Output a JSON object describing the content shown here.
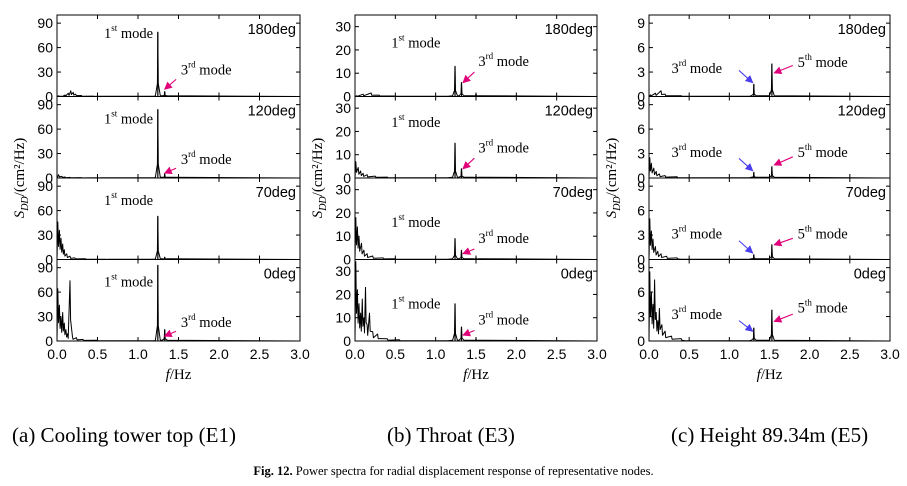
{
  "chart_data": [
    {
      "type": "line",
      "panel": "a",
      "subtitle": "(a) Cooling tower top (E1)",
      "xlabel_italic": "f",
      "xlabel_unit": "/Hz",
      "ylabel_italic": "S",
      "ylabel_sub": "DD",
      "ylabel_unit": "/(cm²/Hz)",
      "xlim": [
        0,
        3.0
      ],
      "xticks": [
        0,
        0.5,
        1.0,
        1.5,
        2.0,
        2.5,
        3.0
      ],
      "xtick_labels": [
        "0.0",
        "0.5",
        "1.0",
        "1.5",
        "2.0",
        "2.5",
        "3.0"
      ],
      "ylim": [
        0,
        100
      ],
      "yticks": [
        0,
        30,
        60,
        90
      ],
      "ytick_labels": [
        "0",
        "30",
        "60",
        "90"
      ],
      "strips": [
        {
          "angle": "180deg",
          "baseline": [
            [
              0.02,
              0.8
            ],
            [
              0.06,
              0.4
            ],
            [
              0.1,
              1.8
            ],
            [
              0.14,
              4.0
            ],
            [
              0.17,
              7.0
            ],
            [
              0.2,
              5.0
            ],
            [
              0.23,
              3.0
            ],
            [
              0.3,
              1.2
            ],
            [
              0.45,
              0.5
            ]
          ],
          "peaks": [
            [
              1.245,
              79
            ],
            [
              1.33,
              6
            ]
          ],
          "annotations": [
            {
              "text": "1",
              "sup": "st",
              "suffix": " mode",
              "x": 0.58,
              "y": 72
            },
            {
              "text": "3",
              "sup": "rd",
              "suffix": " mode",
              "x": 1.53,
              "y": 27,
              "arrow_from": [
                1.47,
                21
              ],
              "arrow_to": [
                1.33,
                9
              ]
            }
          ]
        },
        {
          "angle": "120deg",
          "baseline": [
            [
              0.02,
              4.0
            ],
            [
              0.06,
              2.0
            ],
            [
              0.1,
              1.2
            ],
            [
              0.16,
              0.7
            ],
            [
              0.3,
              0.5
            ],
            [
              0.5,
              0.3
            ]
          ],
          "peaks": [
            [
              1.245,
              84
            ],
            [
              1.33,
              5
            ]
          ],
          "annotations": [
            {
              "text": "1",
              "sup": "st",
              "suffix": " mode",
              "x": 0.58,
              "y": 67
            },
            {
              "text": "3",
              "sup": "rd",
              "suffix": " mode",
              "x": 1.53,
              "y": 17,
              "arrow_from": [
                1.47,
                12
              ],
              "arrow_to": [
                1.33,
                6
              ]
            }
          ]
        },
        {
          "angle": "70deg",
          "baseline": [
            [
              0.01,
              46
            ],
            [
              0.03,
              36
            ],
            [
              0.05,
              26
            ],
            [
              0.07,
              19
            ],
            [
              0.09,
              12
            ],
            [
              0.12,
              7
            ],
            [
              0.16,
              4
            ],
            [
              0.22,
              2
            ],
            [
              0.35,
              1
            ],
            [
              0.6,
              0.4
            ]
          ],
          "peaks": [
            [
              1.245,
              53
            ],
            [
              1.33,
              3
            ]
          ],
          "annotations": [
            {
              "text": "1",
              "sup": "st",
              "suffix": " mode",
              "x": 0.58,
              "y": 67
            }
          ]
        },
        {
          "angle": "0deg",
          "baseline": [
            [
              0.01,
              64
            ],
            [
              0.03,
              44
            ],
            [
              0.05,
              30
            ],
            [
              0.07,
              35
            ],
            [
              0.09,
              22
            ],
            [
              0.11,
              14
            ],
            [
              0.13,
              9
            ],
            [
              0.16,
              74
            ],
            [
              0.19,
              6
            ],
            [
              0.24,
              4
            ],
            [
              0.32,
              2
            ],
            [
              0.5,
              1
            ]
          ],
          "peaks": [
            [
              1.245,
              93
            ],
            [
              1.33,
              14
            ]
          ],
          "annotations": [
            {
              "text": "1",
              "sup": "st",
              "suffix": " mode",
              "x": 0.58,
              "y": 67
            },
            {
              "text": "3",
              "sup": "rd",
              "suffix": " mode",
              "x": 1.53,
              "y": 17,
              "arrow_from": [
                1.47,
                12
              ],
              "arrow_to": [
                1.33,
                6
              ]
            }
          ]
        }
      ]
    },
    {
      "type": "line",
      "panel": "b",
      "subtitle": "(b) Throat (E3)",
      "xlabel_italic": "f",
      "xlabel_unit": "/Hz",
      "ylabel_italic": "S",
      "ylabel_sub": "DD",
      "ylabel_unit": "/(cm²/Hz)",
      "xlim": [
        0,
        3.0
      ],
      "xticks": [
        0,
        0.5,
        1.0,
        1.5,
        2.0,
        2.5,
        3.0
      ],
      "xtick_labels": [
        "0.0",
        "0.5",
        "1.0",
        "1.5",
        "2.0",
        "2.5",
        "3.0"
      ],
      "ylim": [
        0,
        35
      ],
      "yticks": [
        0,
        10,
        20,
        30
      ],
      "ytick_labels": [
        "0",
        "10",
        "20",
        "30"
      ],
      "strips": [
        {
          "angle": "180deg",
          "baseline": [
            [
              0.02,
              0.3
            ],
            [
              0.1,
              1.0
            ],
            [
              0.2,
              1.5
            ],
            [
              0.3,
              0.6
            ],
            [
              0.5,
              0.2
            ]
          ],
          "peaks": [
            [
              1.24,
              13
            ],
            [
              1.32,
              6
            ],
            [
              1.5,
              1.2
            ]
          ],
          "annotations": [
            {
              "text": "1",
              "sup": "st",
              "suffix": " mode",
              "x": 0.45,
              "y": 21
            },
            {
              "text": "3",
              "sup": "rd",
              "suffix": " mode",
              "x": 1.53,
              "y": 13,
              "arrow_from": [
                1.48,
                10.5
              ],
              "arrow_to": [
                1.34,
                6
              ]
            }
          ]
        },
        {
          "angle": "120deg",
          "baseline": [
            [
              0.01,
              7
            ],
            [
              0.04,
              4.5
            ],
            [
              0.07,
              3
            ],
            [
              0.1,
              2
            ],
            [
              0.15,
              1.4
            ],
            [
              0.25,
              0.8
            ],
            [
              0.4,
              0.4
            ]
          ],
          "peaks": [
            [
              1.24,
              15
            ],
            [
              1.32,
              4
            ],
            [
              1.5,
              0.8
            ]
          ],
          "annotations": [
            {
              "text": "1",
              "sup": "st",
              "suffix": " mode",
              "x": 0.45,
              "y": 22
            },
            {
              "text": "3",
              "sup": "rd",
              "suffix": " mode",
              "x": 1.53,
              "y": 11,
              "arrow_from": [
                1.48,
                8.5
              ],
              "arrow_to": [
                1.34,
                4
              ]
            }
          ]
        },
        {
          "angle": "70deg",
          "baseline": [
            [
              0.01,
              18
            ],
            [
              0.03,
              14
            ],
            [
              0.05,
              10
            ],
            [
              0.08,
              7
            ],
            [
              0.11,
              4
            ],
            [
              0.15,
              2.5
            ],
            [
              0.22,
              1.5
            ],
            [
              0.35,
              0.7
            ],
            [
              0.5,
              0.3
            ]
          ],
          "peaks": [
            [
              1.24,
              9
            ],
            [
              1.32,
              4
            ],
            [
              1.5,
              0.8
            ]
          ],
          "annotations": [
            {
              "text": "1",
              "sup": "st",
              "suffix": " mode",
              "x": 0.45,
              "y": 14
            },
            {
              "text": "3",
              "sup": "rd",
              "suffix": " mode",
              "x": 1.53,
              "y": 7,
              "arrow_from": [
                1.48,
                4.5
              ],
              "arrow_to": [
                1.34,
                2.5
              ]
            }
          ]
        },
        {
          "angle": "0deg",
          "baseline": [
            [
              0.01,
              34
            ],
            [
              0.03,
              22
            ],
            [
              0.05,
              16
            ],
            [
              0.07,
              12
            ],
            [
              0.09,
              18
            ],
            [
              0.11,
              10
            ],
            [
              0.13,
              23
            ],
            [
              0.15,
              7
            ],
            [
              0.18,
              12
            ],
            [
              0.22,
              4
            ],
            [
              0.28,
              3
            ],
            [
              0.4,
              1
            ],
            [
              0.55,
              0.5
            ]
          ],
          "peaks": [
            [
              1.24,
              16
            ],
            [
              1.32,
              6
            ],
            [
              1.5,
              1
            ]
          ],
          "annotations": [
            {
              "text": "1",
              "sup": "st",
              "suffix": " mode",
              "x": 0.45,
              "y": 14
            },
            {
              "text": "3",
              "sup": "rd",
              "suffix": " mode",
              "x": 1.53,
              "y": 7,
              "arrow_from": [
                1.48,
                4.5
              ],
              "arrow_to": [
                1.34,
                2.5
              ]
            }
          ]
        }
      ]
    },
    {
      "type": "line",
      "panel": "c",
      "subtitle": "(c) Height 89.34m (E5)",
      "xlabel_italic": "f",
      "xlabel_unit": "/Hz",
      "ylabel_italic": "S",
      "ylabel_sub": "DD",
      "ylabel_unit": "/(cm²/Hz)",
      "xlim": [
        0,
        3.0
      ],
      "xticks": [
        0,
        0.5,
        1.0,
        1.5,
        2.0,
        2.5,
        3.0
      ],
      "xtick_labels": [
        "0.0",
        "0.5",
        "1.0",
        "1.5",
        "2.0",
        "2.5",
        "3.0"
      ],
      "ylim": [
        0,
        10
      ],
      "yticks": [
        0,
        3,
        6,
        9
      ],
      "ytick_labels": [
        "0",
        "3",
        "6",
        "9"
      ],
      "strips": [
        {
          "angle": "180deg",
          "baseline": [
            [
              0.02,
              0.2
            ],
            [
              0.08,
              0.4
            ],
            [
              0.15,
              0.7
            ],
            [
              0.2,
              0.3
            ],
            [
              0.4,
              0.1
            ]
          ],
          "peaks": [
            [
              1.305,
              1.5
            ],
            [
              1.53,
              4
            ]
          ],
          "annotations": [
            {
              "text": "3",
              "sup": "rd",
              "suffix": " mode",
              "x": 0.28,
              "y": 2.9,
              "arrow_from": [
                1.12,
                3.2
              ],
              "arrow_to": [
                1.29,
                1.7
              ]
            },
            {
              "text": "5",
              "sup": "th",
              "suffix": " mode",
              "x": 1.85,
              "y": 3.6,
              "arrow_from": [
                1.79,
                3.8
              ],
              "arrow_to": [
                1.56,
                2.9
              ]
            }
          ]
        },
        {
          "angle": "120deg",
          "baseline": [
            [
              0.01,
              2.5
            ],
            [
              0.03,
              1.8
            ],
            [
              0.06,
              1.2
            ],
            [
              0.09,
              0.8
            ],
            [
              0.13,
              0.5
            ],
            [
              0.2,
              0.3
            ],
            [
              0.35,
              0.15
            ]
          ],
          "peaks": [
            [
              1.305,
              0.7
            ],
            [
              1.53,
              1.4
            ]
          ],
          "annotations": [
            {
              "text": "3",
              "sup": "rd",
              "suffix": " mode",
              "x": 0.28,
              "y": 2.6,
              "arrow_from": [
                1.12,
                2.4
              ],
              "arrow_to": [
                1.29,
                0.9
              ]
            },
            {
              "text": "5",
              "sup": "th",
              "suffix": " mode",
              "x": 1.85,
              "y": 2.6,
              "arrow_from": [
                1.79,
                2.6
              ],
              "arrow_to": [
                1.56,
                1.6
              ]
            }
          ]
        },
        {
          "angle": "70deg",
          "baseline": [
            [
              0.01,
              5
            ],
            [
              0.03,
              3.5
            ],
            [
              0.05,
              2.5
            ],
            [
              0.08,
              1.6
            ],
            [
              0.11,
              1.0
            ],
            [
              0.15,
              0.7
            ],
            [
              0.22,
              0.4
            ],
            [
              0.35,
              0.2
            ]
          ],
          "peaks": [
            [
              1.305,
              0.6
            ],
            [
              1.53,
              1.8
            ]
          ],
          "annotations": [
            {
              "text": "3",
              "sup": "rd",
              "suffix": " mode",
              "x": 0.28,
              "y": 2.6,
              "arrow_from": [
                1.12,
                2.3
              ],
              "arrow_to": [
                1.29,
                0.8
              ]
            },
            {
              "text": "5",
              "sup": "th",
              "suffix": " mode",
              "x": 1.85,
              "y": 2.6,
              "arrow_from": [
                1.79,
                2.6
              ],
              "arrow_to": [
                1.56,
                1.8
              ]
            }
          ]
        },
        {
          "angle": "0deg",
          "baseline": [
            [
              0.01,
              8.5
            ],
            [
              0.03,
              6
            ],
            [
              0.05,
              4.5
            ],
            [
              0.07,
              7.5
            ],
            [
              0.09,
              3.5
            ],
            [
              0.11,
              2.5
            ],
            [
              0.13,
              4
            ],
            [
              0.16,
              2
            ],
            [
              0.2,
              1.2
            ],
            [
              0.28,
              0.6
            ],
            [
              0.4,
              0.3
            ]
          ],
          "peaks": [
            [
              1.305,
              1.6
            ],
            [
              1.53,
              3.8
            ]
          ],
          "annotations": [
            {
              "text": "3",
              "sup": "rd",
              "suffix": " mode",
              "x": 0.28,
              "y": 2.7,
              "arrow_from": [
                1.12,
                2.5
              ],
              "arrow_to": [
                1.29,
                1.2
              ]
            },
            {
              "text": "5",
              "sup": "th",
              "suffix": " mode",
              "x": 1.85,
              "y": 3.5,
              "arrow_from": [
                1.79,
                3.3
              ],
              "arrow_to": [
                1.56,
                2.4
              ]
            }
          ]
        }
      ]
    }
  ],
  "caption": {
    "label": "Fig. 12.",
    "text": "Power spectra for radial displacement response of representative nodes."
  }
}
